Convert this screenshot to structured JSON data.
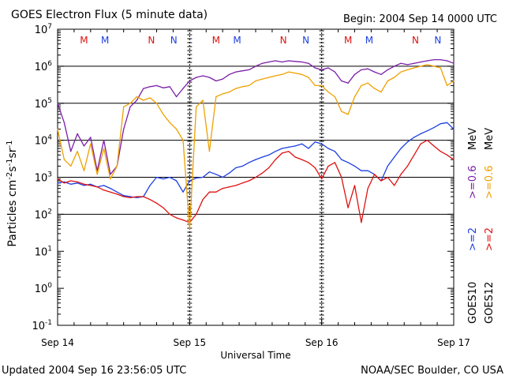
{
  "title": "GOES Electron Flux (5 minute data)",
  "begin": "Begin: 2004 Sep 14 0000 UTC",
  "updated": "Updated 2004 Sep 16 23:56:05 UTC",
  "credit": "NOAA/SEC Boulder, CO USA",
  "colors": {
    "goes10_2mev": "#1c3fe0",
    "goes10_06mev": "#7a1fa8",
    "goes12_2mev": "#e01010",
    "goes12_06mev": "#f0a000",
    "marker_m": "#e01010",
    "marker_n": "#1c3fe0"
  },
  "legend": {
    "goes10": "GOES10",
    "goes12": "GOES12",
    "gt2_goes10": ">=2",
    "gt06_goes10": ">=0.6",
    "mev1": "MeV",
    "gt2_goes12": ">=2",
    "gt06_goes12": ">=0.6",
    "mev2": "MeV"
  },
  "chart_data": {
    "type": "line",
    "title": "GOES Electron Flux (5 minute data)",
    "xlabel": "Universal Time",
    "ylabel": "Particles cm-2 s-1 sr-1",
    "yscale": "log",
    "ylim": [
      0.1,
      10000000
    ],
    "xlim": [
      0,
      3
    ],
    "y_ticks": [
      {
        "base": "10",
        "exp": "-1",
        "value": 0.1
      },
      {
        "base": "10",
        "exp": "0",
        "value": 1
      },
      {
        "base": "10",
        "exp": "1",
        "value": 10
      },
      {
        "base": "10",
        "exp": "2",
        "value": 100
      },
      {
        "base": "10",
        "exp": "3",
        "value": 1000
      },
      {
        "base": "10",
        "exp": "4",
        "value": 10000
      },
      {
        "base": "10",
        "exp": "5",
        "value": 100000
      },
      {
        "base": "10",
        "exp": "6",
        "value": 1000000
      },
      {
        "base": "10",
        "exp": "7",
        "value": 10000000
      }
    ],
    "x_ticks": [
      {
        "label": "Sep 14",
        "day": 0
      },
      {
        "label": "Sep 15",
        "day": 1
      },
      {
        "label": "Sep 16",
        "day": 2
      },
      {
        "label": "Sep 17",
        "day": 3
      }
    ],
    "threshold": 1000,
    "markers": [
      {
        "label": "M",
        "day": 0.2,
        "color": "marker_m"
      },
      {
        "label": "M",
        "day": 0.36,
        "color": "marker_n"
      },
      {
        "label": "N",
        "day": 0.71,
        "color": "marker_m"
      },
      {
        "label": "N",
        "day": 0.88,
        "color": "marker_n"
      },
      {
        "label": "M",
        "day": 1.2,
        "color": "marker_m"
      },
      {
        "label": "M",
        "day": 1.36,
        "color": "marker_n"
      },
      {
        "label": "N",
        "day": 1.71,
        "color": "marker_m"
      },
      {
        "label": "N",
        "day": 1.88,
        "color": "marker_n"
      },
      {
        "label": "M",
        "day": 2.2,
        "color": "marker_m"
      },
      {
        "label": "M",
        "day": 2.36,
        "color": "marker_n"
      },
      {
        "label": "N",
        "day": 2.71,
        "color": "marker_m"
      },
      {
        "label": "N",
        "day": 2.88,
        "color": "marker_n"
      }
    ],
    "series": [
      {
        "name": "GOES10 >=2 MeV",
        "color": "goes10_2mev",
        "x": [
          0,
          0.05,
          0.1,
          0.15,
          0.2,
          0.25,
          0.3,
          0.35,
          0.4,
          0.45,
          0.5,
          0.55,
          0.6,
          0.65,
          0.7,
          0.75,
          0.8,
          0.85,
          0.9,
          0.95,
          1.0,
          1.05,
          1.1,
          1.15,
          1.2,
          1.25,
          1.3,
          1.35,
          1.4,
          1.45,
          1.5,
          1.55,
          1.6,
          1.65,
          1.7,
          1.75,
          1.8,
          1.85,
          1.9,
          1.95,
          2.0,
          2.05,
          2.1,
          2.15,
          2.2,
          2.25,
          2.3,
          2.35,
          2.4,
          2.45,
          2.5,
          2.55,
          2.6,
          2.65,
          2.7,
          2.75,
          2.8,
          2.85,
          2.9,
          2.95,
          3.0
        ],
        "y": [
          700,
          750,
          650,
          700,
          600,
          650,
          550,
          600,
          500,
          400,
          320,
          300,
          280,
          300,
          600,
          1000,
          900,
          1000,
          800,
          400,
          800,
          950,
          1000,
          1400,
          1200,
          1000,
          1300,
          1800,
          2000,
          2500,
          3000,
          3500,
          4000,
          5000,
          6000,
          6500,
          7000,
          8000,
          6000,
          9000,
          8000,
          6000,
          5000,
          3000,
          2500,
          2000,
          1500,
          1500,
          1200,
          800,
          2000,
          3500,
          6000,
          9000,
          12000,
          15000,
          18000,
          22000,
          28000,
          30000,
          20000
        ]
      },
      {
        "name": "GOES10 >=0.6 MeV",
        "color": "goes10_06mev",
        "x": [
          0,
          0.05,
          0.1,
          0.15,
          0.2,
          0.25,
          0.3,
          0.35,
          0.4,
          0.45,
          0.5,
          0.55,
          0.6,
          0.65,
          0.7,
          0.75,
          0.8,
          0.85,
          0.9,
          0.95,
          1.0,
          1.05,
          1.1,
          1.15,
          1.2,
          1.25,
          1.3,
          1.35,
          1.4,
          1.45,
          1.5,
          1.55,
          1.6,
          1.65,
          1.7,
          1.75,
          1.8,
          1.85,
          1.9,
          1.95,
          2.0,
          2.05,
          2.1,
          2.15,
          2.2,
          2.25,
          2.3,
          2.35,
          2.4,
          2.45,
          2.5,
          2.55,
          2.6,
          2.65,
          2.7,
          2.75,
          2.8,
          2.85,
          2.9,
          2.95,
          3.0
        ],
        "y": [
          100000,
          30000,
          5000,
          15000,
          7000,
          12000,
          1500,
          10000,
          1200,
          2000,
          20000,
          80000,
          120000,
          250000,
          280000,
          300000,
          260000,
          280000,
          150000,
          250000,
          400000,
          500000,
          550000,
          500000,
          400000,
          450000,
          600000,
          700000,
          750000,
          800000,
          1000000,
          1200000,
          1300000,
          1400000,
          1300000,
          1400000,
          1350000,
          1300000,
          1200000,
          900000,
          800000,
          900000,
          700000,
          400000,
          350000,
          600000,
          800000,
          850000,
          700000,
          600000,
          800000,
          1000000,
          1200000,
          1100000,
          1200000,
          1300000,
          1400000,
          1500000,
          1500000,
          1400000,
          1200000
        ]
      },
      {
        "name": "GOES12 >=2 MeV",
        "color": "goes12_2mev",
        "x": [
          0,
          0.05,
          0.1,
          0.15,
          0.2,
          0.25,
          0.3,
          0.35,
          0.4,
          0.45,
          0.5,
          0.55,
          0.6,
          0.65,
          0.7,
          0.75,
          0.8,
          0.85,
          0.9,
          0.95,
          1.0,
          1.05,
          1.1,
          1.15,
          1.2,
          1.25,
          1.3,
          1.35,
          1.4,
          1.45,
          1.5,
          1.55,
          1.6,
          1.65,
          1.7,
          1.75,
          1.8,
          1.85,
          1.9,
          1.95,
          2.0,
          2.05,
          2.1,
          2.15,
          2.2,
          2.25,
          2.3,
          2.35,
          2.4,
          2.45,
          2.5,
          2.55,
          2.6,
          2.65,
          2.7,
          2.75,
          2.8,
          2.85,
          2.9,
          2.95,
          3.0
        ],
        "y": [
          900,
          700,
          800,
          750,
          650,
          600,
          550,
          450,
          400,
          350,
          300,
          280,
          300,
          300,
          250,
          200,
          150,
          100,
          80,
          70,
          60,
          100,
          250,
          400,
          400,
          500,
          550,
          600,
          700,
          800,
          1000,
          1300,
          1800,
          3000,
          4500,
          5000,
          3500,
          3000,
          2500,
          1800,
          900,
          2000,
          2500,
          1000,
          150,
          600,
          60,
          500,
          1200,
          800,
          1000,
          600,
          1200,
          2000,
          4000,
          8000,
          10000,
          7000,
          5000,
          4000,
          3000
        ]
      },
      {
        "name": "GOES12 >=0.6 MeV",
        "color": "goes12_06mev",
        "x": [
          0,
          0.05,
          0.1,
          0.15,
          0.2,
          0.25,
          0.3,
          0.35,
          0.4,
          0.45,
          0.5,
          0.55,
          0.6,
          0.65,
          0.7,
          0.75,
          0.8,
          0.85,
          0.9,
          0.95,
          1.0,
          1.05,
          1.1,
          1.15,
          1.2,
          1.25,
          1.3,
          1.35,
          1.4,
          1.45,
          1.5,
          1.55,
          1.6,
          1.65,
          1.7,
          1.75,
          1.8,
          1.85,
          1.9,
          1.95,
          2.0,
          2.05,
          2.1,
          2.15,
          2.2,
          2.25,
          2.3,
          2.35,
          2.4,
          2.45,
          2.5,
          2.55,
          2.6,
          2.65,
          2.7,
          2.75,
          2.8,
          2.85,
          2.9,
          2.95,
          3.0
        ],
        "y": [
          20000,
          3000,
          2000,
          5000,
          1500,
          8000,
          1200,
          6000,
          900,
          2000,
          80000,
          100000,
          150000,
          120000,
          140000,
          100000,
          50000,
          30000,
          20000,
          10000,
          40,
          80000,
          120000,
          5000,
          150000,
          180000,
          200000,
          250000,
          280000,
          300000,
          400000,
          450000,
          500000,
          550000,
          600000,
          700000,
          650000,
          600000,
          500000,
          300000,
          300000,
          200000,
          150000,
          60000,
          50000,
          150000,
          300000,
          350000,
          250000,
          200000,
          400000,
          500000,
          700000,
          800000,
          900000,
          1000000,
          1100000,
          1000000,
          900000,
          300000,
          400000
        ]
      }
    ]
  }
}
